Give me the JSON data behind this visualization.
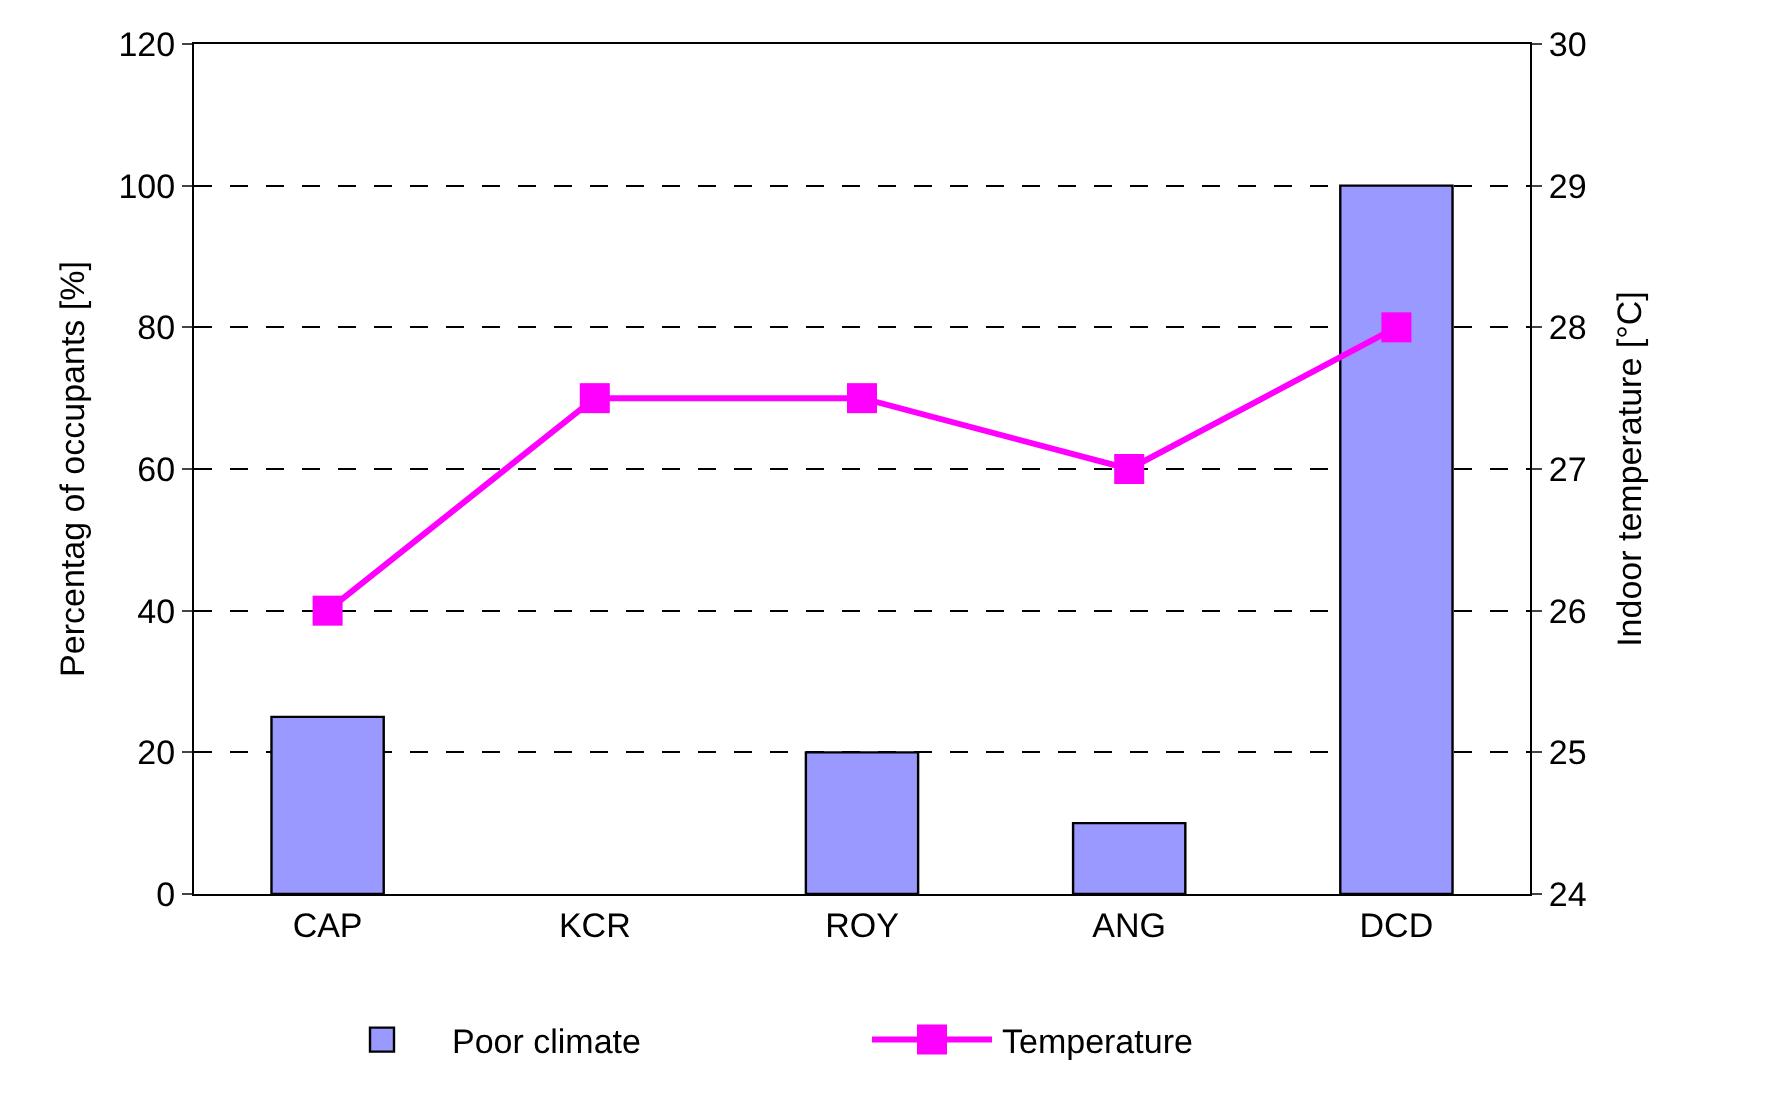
{
  "chart_data": {
    "type": "bar",
    "categories": [
      "CAP",
      "KCR",
      "ROY",
      "ANG",
      "DCD"
    ],
    "ylabel": "Percentag of occupants [%]",
    "y2label": "Indoor temperature [°C]",
    "series": [
      {
        "name": "Poor climate",
        "color": "#9999ff",
        "values": [
          25,
          0,
          20,
          10,
          100
        ]
      },
      {
        "name": "Temperature",
        "type": "line",
        "axis": "y2",
        "color": "#ff00ff",
        "marker": "square",
        "values": [
          26,
          27.5,
          27.5,
          27,
          28
        ]
      }
    ],
    "ylim": [
      0,
      120
    ],
    "yticks": [
      0,
      20,
      40,
      60,
      80,
      100,
      120
    ],
    "y2lim": [
      24,
      30
    ],
    "y2ticks": [
      24,
      25,
      26,
      27,
      28,
      29,
      30
    ],
    "grid": "y",
    "legend": "bottom"
  }
}
